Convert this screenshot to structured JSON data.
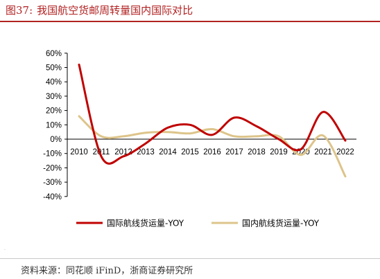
{
  "figure": {
    "number": "图37:",
    "title": "我国航空货邮周转量国内国际对比",
    "source": "资料来源：同花顺 iFinD，浙商证券研究所"
  },
  "chart_data": {
    "type": "line",
    "x": [
      "2010",
      "2011",
      "2012",
      "2013",
      "2014",
      "2015",
      "2016",
      "2017",
      "2018",
      "2019",
      "2020",
      "2021",
      "2022"
    ],
    "series": [
      {
        "name": "国际航线货运量-YOY",
        "color": "#c00000",
        "values": [
          52,
          -12,
          -12,
          -3,
          8,
          10,
          3,
          15,
          9,
          0,
          -7,
          19,
          -1
        ]
      },
      {
        "name": "国内航线货运量-YOY",
        "color": "#ddc48a",
        "values": [
          16,
          2,
          2,
          4.5,
          5,
          4,
          7,
          2,
          2,
          2,
          -11,
          2.5,
          -26
        ]
      }
    ],
    "ylim": [
      -40,
      60
    ],
    "yticks": [
      -40,
      -30,
      -20,
      -10,
      0,
      10,
      20,
      30,
      40,
      50,
      60
    ],
    "ytick_labels": [
      "-40%",
      "-30%",
      "-20%",
      "-10%",
      "0%",
      "10%",
      "20%",
      "30%",
      "40%",
      "50%",
      "60%"
    ],
    "legend_position": "bottom",
    "grid": false
  }
}
